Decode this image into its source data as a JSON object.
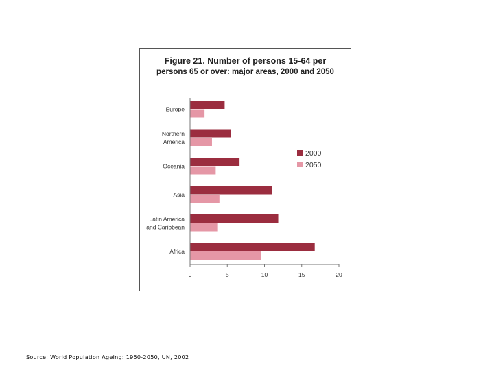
{
  "chart_data": {
    "type": "bar",
    "orientation": "horizontal",
    "title": "Figure 21.  Number of persons 15-64 per persons 65 or over: major areas, 2000 and 2050",
    "title_line1": "Figure 21.  Number of persons 15-64 per",
    "title_line2": "persons 65 or over: major areas, 2000 and 2050",
    "categories": [
      "Europe",
      "Northern America",
      "Oceania",
      "Asia",
      "Latin America and Caribbean",
      "Africa"
    ],
    "series": [
      {
        "name": "2000",
        "color": "#9b2d3f",
        "values": [
          4.6,
          5.4,
          6.6,
          11.0,
          11.8,
          16.7
        ]
      },
      {
        "name": "2050",
        "color": "#e597a6",
        "values": [
          1.9,
          2.9,
          3.4,
          3.9,
          3.7,
          9.5
        ]
      }
    ],
    "xlim": [
      0,
      20
    ],
    "xticks": [
      "0",
      "5",
      "10",
      "15",
      "20"
    ],
    "legend_position": "right",
    "grid": false
  },
  "source": "Source: World Population Ageing: 1950-2050, UN, 2002"
}
